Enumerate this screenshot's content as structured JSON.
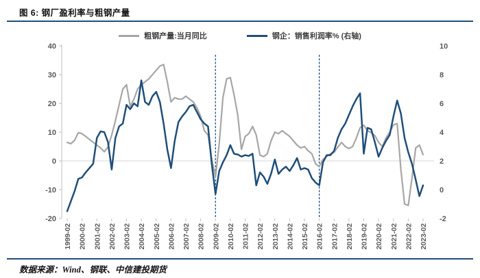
{
  "header": {
    "title": "图 6: 钢厂盈利率与粗钢产量"
  },
  "footer": {
    "source": "数据来源：Wind、钢联、中信建投期货"
  },
  "legend": [
    {
      "label": "粗钢产量:当月同比",
      "color": "#A6A6A6"
    },
    {
      "label": "钢企：销售利润率% (右轴)",
      "color": "#1F4E79"
    }
  ],
  "colors": {
    "accent_rule": "#1F4E79",
    "production_line": "#A6A6A6",
    "margin_line": "#1F4E79",
    "dashed_guide": "#1F4E79",
    "axis_line": "#BFBFBF",
    "zero_line": "#D6D6D6",
    "tick_text": "#595959"
  },
  "chart_data": {
    "type": "line",
    "title": "钢厂盈利率与粗钢产量",
    "xlabel": "",
    "ylabel_left": "粗钢产量当月同比%",
    "ylabel_right": "销售利润率%",
    "grid": "zero-line-only",
    "legend_position": "top",
    "left_axis": {
      "min": -20,
      "max": 40,
      "ticks": [
        40,
        30,
        20,
        10,
        0,
        -10,
        -20
      ]
    },
    "right_axis": {
      "min": -2,
      "max": 10,
      "ticks": [
        10,
        8,
        6,
        4,
        2,
        0,
        -2
      ]
    },
    "x_tick_labels": [
      "1999-02",
      "2000-02",
      "2001-02",
      "2002-02",
      "2003-02",
      "2004-02",
      "2005-02",
      "2006-02",
      "2007-02",
      "2008-02",
      "2009-02",
      "2010-02",
      "2011-02",
      "2012-02",
      "2013-02",
      "2014-02",
      "2015-02",
      "2016-02",
      "2017-02",
      "2018-02",
      "2019-02",
      "2020-02",
      "2021-02",
      "2022-02",
      "2023-02"
    ],
    "dashed_vlines": [
      "2009-02",
      "2016-02"
    ],
    "categories": [
      "1999-02",
      "1999-05",
      "1999-08",
      "1999-11",
      "2000-02",
      "2000-05",
      "2000-08",
      "2000-11",
      "2001-02",
      "2001-05",
      "2001-08",
      "2001-11",
      "2002-02",
      "2002-05",
      "2002-08",
      "2002-11",
      "2003-02",
      "2003-05",
      "2003-08",
      "2003-11",
      "2004-02",
      "2004-05",
      "2004-08",
      "2004-11",
      "2005-02",
      "2005-05",
      "2005-08",
      "2005-11",
      "2006-02",
      "2006-05",
      "2006-08",
      "2006-11",
      "2007-02",
      "2007-05",
      "2007-08",
      "2007-11",
      "2008-02",
      "2008-05",
      "2008-08",
      "2008-11",
      "2009-02",
      "2009-05",
      "2009-08",
      "2009-11",
      "2010-02",
      "2010-05",
      "2010-08",
      "2010-11",
      "2011-02",
      "2011-05",
      "2011-08",
      "2011-11",
      "2012-02",
      "2012-05",
      "2012-08",
      "2012-11",
      "2013-02",
      "2013-05",
      "2013-08",
      "2013-11",
      "2014-02",
      "2014-05",
      "2014-08",
      "2014-11",
      "2015-02",
      "2015-05",
      "2015-08",
      "2015-11",
      "2016-02",
      "2016-05",
      "2016-08",
      "2016-11",
      "2017-02",
      "2017-05",
      "2017-08",
      "2017-11",
      "2018-02",
      "2018-05",
      "2018-08",
      "2018-11",
      "2019-02",
      "2019-05",
      "2019-08",
      "2019-11",
      "2020-02",
      "2020-05",
      "2020-08",
      "2020-11",
      "2021-02",
      "2021-05",
      "2021-08",
      "2021-11",
      "2022-02",
      "2022-05",
      "2022-08",
      "2022-11",
      "2023-02"
    ],
    "series": [
      {
        "name": "粗钢产量:当月同比",
        "axis": "left",
        "color": "#A6A6A6",
        "values": [
          6.4,
          6.0,
          7.2,
          9.8,
          9.5,
          8.5,
          7.5,
          6.5,
          5.5,
          4.5,
          3.2,
          4.8,
          9.0,
          14.0,
          19.5,
          25.0,
          26.5,
          19.0,
          21.5,
          25.0,
          26.5,
          27.5,
          28.5,
          30.0,
          31.5,
          33.0,
          33.5,
          27.5,
          20.5,
          22.0,
          21.5,
          21.5,
          22.5,
          21.5,
          20.5,
          18.5,
          15.5,
          10.5,
          9.0,
          0.5,
          -5.5,
          6.0,
          22.0,
          28.5,
          29.0,
          23.0,
          16.0,
          4.0,
          8.5,
          9.5,
          12.0,
          9.0,
          2.0,
          1.5,
          2.5,
          7.0,
          10.0,
          9.5,
          10.5,
          9.5,
          8.5,
          7.0,
          5.5,
          4.5,
          5.0,
          3.5,
          2.5,
          -1.0,
          -2.0,
          0.5,
          1.5,
          2.5,
          3.0,
          4.8,
          6.4,
          5.0,
          4.3,
          5.0,
          8.0,
          11.5,
          12.4,
          10.5,
          9.8,
          8.8,
          6.5,
          5.0,
          8.0,
          10.0,
          12.5,
          13.0,
          -3.0,
          -15.0,
          -15.5,
          -6.0,
          4.5,
          5.5,
          2.2
        ]
      },
      {
        "name": "钢企：销售利润率% (右轴)",
        "axis": "right",
        "color": "#1F4E79",
        "values": [
          -1.5,
          -0.8,
          -0.1,
          0.75,
          0.85,
          1.2,
          1.5,
          1.8,
          3.6,
          4.05,
          4.0,
          3.3,
          1.4,
          3.6,
          4.4,
          4.6,
          5.9,
          5.6,
          6.0,
          5.8,
          7.6,
          6.1,
          5.9,
          6.5,
          6.8,
          6.1,
          4.6,
          2.8,
          1.5,
          3.4,
          4.7,
          5.1,
          5.4,
          5.8,
          5.9,
          5.4,
          4.9,
          4.6,
          4.4,
          1.8,
          -0.3,
          1.3,
          1.9,
          2.4,
          3.1,
          2.5,
          2.45,
          2.3,
          2.4,
          2.35,
          2.5,
          0.3,
          1.2,
          0.9,
          0.4,
          1.1,
          2.1,
          1.1,
          1.4,
          1.6,
          1.3,
          1.7,
          2.2,
          1.4,
          1.5,
          1.4,
          0.8,
          0.5,
          0.3,
          1.9,
          2.4,
          2.4,
          2.7,
          3.6,
          4.2,
          4.6,
          5.2,
          5.8,
          6.3,
          6.7,
          2.5,
          4.3,
          4.2,
          3.3,
          2.3,
          2.9,
          3.4,
          3.8,
          5.1,
          6.2,
          5.3,
          3.6,
          2.6,
          1.8,
          0.7,
          -0.45,
          0.3
        ]
      }
    ]
  }
}
